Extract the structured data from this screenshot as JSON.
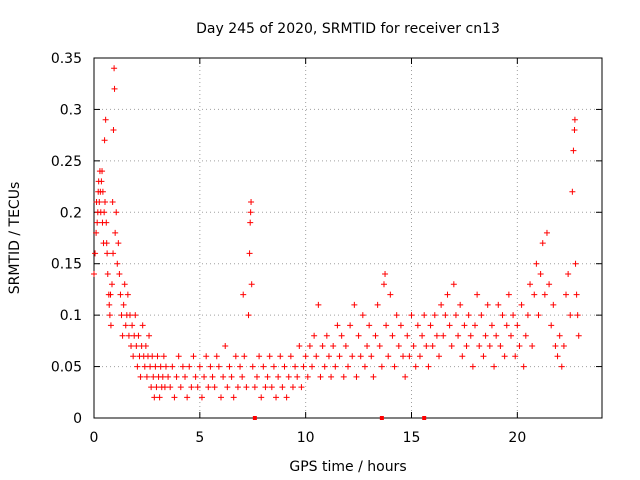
{
  "chart_data": {
    "type": "scatter",
    "title": "Day 245 of 2020, SRMTID for receiver cn13",
    "xlabel": "GPS time / hours",
    "ylabel": "SRMTID / TECUs",
    "xlim": [
      0,
      24
    ],
    "ylim": [
      0,
      0.35
    ],
    "xticks": [
      0,
      5,
      10,
      15,
      20
    ],
    "xtick_labels": [
      "0",
      "5",
      "10",
      "15",
      "20"
    ],
    "yticks": [
      0,
      0.05,
      0.1,
      0.15,
      0.2,
      0.25,
      0.3,
      0.35
    ],
    "ytick_labels": [
      "0",
      "0.05",
      "0.1",
      "0.15",
      "0.2",
      "0.25",
      "0.3",
      "0.35"
    ],
    "grid": true,
    "marker": "plus",
    "color": "#ff0000",
    "series": [
      {
        "name": "SRMTID",
        "points": [
          [
            0.0,
            0.14
          ],
          [
            0.05,
            0.16
          ],
          [
            0.1,
            0.18
          ],
          [
            0.12,
            0.21
          ],
          [
            0.15,
            0.19
          ],
          [
            0.18,
            0.2
          ],
          [
            0.2,
            0.22
          ],
          [
            0.22,
            0.23
          ],
          [
            0.25,
            0.21
          ],
          [
            0.28,
            0.24
          ],
          [
            0.3,
            0.22
          ],
          [
            0.32,
            0.2
          ],
          [
            0.35,
            0.23
          ],
          [
            0.38,
            0.24
          ],
          [
            0.4,
            0.19
          ],
          [
            0.42,
            0.22
          ],
          [
            0.45,
            0.17
          ],
          [
            0.48,
            0.2
          ],
          [
            0.5,
            0.27
          ],
          [
            0.52,
            0.21
          ],
          [
            0.55,
            0.29
          ],
          [
            0.58,
            0.19
          ],
          [
            0.6,
            0.17
          ],
          [
            0.62,
            0.16
          ],
          [
            0.65,
            0.14
          ],
          [
            0.7,
            0.12
          ],
          [
            0.72,
            0.11
          ],
          [
            0.75,
            0.1
          ],
          [
            0.78,
            0.12
          ],
          [
            0.8,
            0.09
          ],
          [
            0.85,
            0.13
          ],
          [
            0.88,
            0.21
          ],
          [
            0.9,
            0.16
          ],
          [
            0.92,
            0.28
          ],
          [
            0.95,
            0.34
          ],
          [
            0.97,
            0.32
          ],
          [
            1.0,
            0.18
          ],
          [
            1.05,
            0.2
          ],
          [
            1.1,
            0.15
          ],
          [
            1.15,
            0.17
          ],
          [
            1.2,
            0.14
          ],
          [
            1.25,
            0.12
          ],
          [
            1.3,
            0.1
          ],
          [
            1.35,
            0.08
          ],
          [
            1.4,
            0.11
          ],
          [
            1.45,
            0.13
          ],
          [
            1.5,
            0.09
          ],
          [
            1.55,
            0.1
          ],
          [
            1.6,
            0.12
          ],
          [
            1.65,
            0.08
          ],
          [
            1.7,
            0.1
          ],
          [
            1.75,
            0.07
          ],
          [
            1.8,
            0.09
          ],
          [
            1.85,
            0.06
          ],
          [
            1.9,
            0.08
          ],
          [
            1.95,
            0.1
          ],
          [
            2.0,
            0.07
          ],
          [
            2.05,
            0.05
          ],
          [
            2.1,
            0.08
          ],
          [
            2.15,
            0.06
          ],
          [
            2.2,
            0.04
          ],
          [
            2.25,
            0.07
          ],
          [
            2.3,
            0.09
          ],
          [
            2.35,
            0.06
          ],
          [
            2.4,
            0.05
          ],
          [
            2.45,
            0.07
          ],
          [
            2.5,
            0.04
          ],
          [
            2.55,
            0.06
          ],
          [
            2.6,
            0.08
          ],
          [
            2.65,
            0.05
          ],
          [
            2.7,
            0.03
          ],
          [
            2.75,
            0.06
          ],
          [
            2.8,
            0.04
          ],
          [
            2.85,
            0.02
          ],
          [
            2.9,
            0.05
          ],
          [
            2.95,
            0.03
          ],
          [
            3.0,
            0.06
          ],
          [
            3.05,
            0.04
          ],
          [
            3.1,
            0.02
          ],
          [
            3.15,
            0.05
          ],
          [
            3.2,
            0.03
          ],
          [
            3.25,
            0.04
          ],
          [
            3.3,
            0.06
          ],
          [
            3.35,
            0.03
          ],
          [
            3.4,
            0.05
          ],
          [
            3.5,
            0.04
          ],
          [
            3.6,
            0.03
          ],
          [
            3.7,
            0.05
          ],
          [
            3.8,
            0.02
          ],
          [
            3.9,
            0.04
          ],
          [
            4.0,
            0.06
          ],
          [
            4.1,
            0.03
          ],
          [
            4.2,
            0.05
          ],
          [
            4.3,
            0.04
          ],
          [
            4.4,
            0.02
          ],
          [
            4.5,
            0.05
          ],
          [
            4.6,
            0.03
          ],
          [
            4.7,
            0.06
          ],
          [
            4.8,
            0.04
          ],
          [
            4.9,
            0.03
          ],
          [
            5.0,
            0.05
          ],
          [
            5.1,
            0.02
          ],
          [
            5.2,
            0.04
          ],
          [
            5.3,
            0.06
          ],
          [
            5.4,
            0.03
          ],
          [
            5.5,
            0.05
          ],
          [
            5.6,
            0.04
          ],
          [
            5.7,
            0.03
          ],
          [
            5.8,
            0.06
          ],
          [
            5.9,
            0.05
          ],
          [
            6.0,
            0.02
          ],
          [
            6.1,
            0.04
          ],
          [
            6.2,
            0.07
          ],
          [
            6.3,
            0.03
          ],
          [
            6.4,
            0.05
          ],
          [
            6.5,
            0.04
          ],
          [
            6.6,
            0.02
          ],
          [
            6.7,
            0.06
          ],
          [
            6.8,
            0.03
          ],
          [
            6.9,
            0.05
          ],
          [
            7.0,
            0.04
          ],
          [
            7.05,
            0.12
          ],
          [
            7.1,
            0.06
          ],
          [
            7.2,
            0.03
          ],
          [
            7.3,
            0.1
          ],
          [
            7.35,
            0.16
          ],
          [
            7.38,
            0.19
          ],
          [
            7.4,
            0.2
          ],
          [
            7.42,
            0.21
          ],
          [
            7.45,
            0.13
          ],
          [
            7.5,
            0.05
          ],
          [
            7.6,
            0.03
          ],
          [
            7.7,
            0.04
          ],
          [
            7.8,
            0.06
          ],
          [
            7.9,
            0.02
          ],
          [
            8.0,
            0.05
          ],
          [
            8.1,
            0.03
          ],
          [
            8.2,
            0.04
          ],
          [
            8.3,
            0.06
          ],
          [
            8.4,
            0.03
          ],
          [
            8.5,
            0.05
          ],
          [
            8.6,
            0.02
          ],
          [
            8.7,
            0.04
          ],
          [
            8.8,
            0.06
          ],
          [
            8.9,
            0.03
          ],
          [
            9.0,
            0.05
          ],
          [
            9.1,
            0.02
          ],
          [
            9.2,
            0.04
          ],
          [
            9.3,
            0.06
          ],
          [
            9.4,
            0.03
          ],
          [
            9.5,
            0.05
          ],
          [
            9.6,
            0.04
          ],
          [
            9.7,
            0.07
          ],
          [
            9.8,
            0.03
          ],
          [
            9.9,
            0.05
          ],
          [
            10.0,
            0.06
          ],
          [
            10.1,
            0.04
          ],
          [
            10.2,
            0.07
          ],
          [
            10.3,
            0.05
          ],
          [
            10.4,
            0.08
          ],
          [
            10.5,
            0.06
          ],
          [
            10.6,
            0.11
          ],
          [
            10.7,
            0.04
          ],
          [
            10.8,
            0.07
          ],
          [
            10.9,
            0.05
          ],
          [
            11.0,
            0.08
          ],
          [
            11.1,
            0.06
          ],
          [
            11.2,
            0.04
          ],
          [
            11.3,
            0.07
          ],
          [
            11.4,
            0.05
          ],
          [
            11.5,
            0.09
          ],
          [
            11.6,
            0.06
          ],
          [
            11.7,
            0.08
          ],
          [
            11.8,
            0.04
          ],
          [
            11.9,
            0.07
          ],
          [
            12.0,
            0.05
          ],
          [
            12.1,
            0.09
          ],
          [
            12.2,
            0.06
          ],
          [
            12.3,
            0.11
          ],
          [
            12.4,
            0.04
          ],
          [
            12.5,
            0.08
          ],
          [
            12.6,
            0.06
          ],
          [
            12.7,
            0.1
          ],
          [
            12.8,
            0.05
          ],
          [
            12.9,
            0.07
          ],
          [
            13.0,
            0.09
          ],
          [
            13.1,
            0.06
          ],
          [
            13.2,
            0.04
          ],
          [
            13.3,
            0.08
          ],
          [
            13.4,
            0.11
          ],
          [
            13.5,
            0.07
          ],
          [
            13.6,
            0.05
          ],
          [
            13.7,
            0.13
          ],
          [
            13.75,
            0.14
          ],
          [
            13.8,
            0.09
          ],
          [
            13.9,
            0.06
          ],
          [
            14.0,
            0.12
          ],
          [
            14.1,
            0.08
          ],
          [
            14.2,
            0.05
          ],
          [
            14.3,
            0.1
          ],
          [
            14.4,
            0.07
          ],
          [
            14.5,
            0.09
          ],
          [
            14.6,
            0.06
          ],
          [
            14.7,
            0.04
          ],
          [
            14.8,
            0.08
          ],
          [
            14.9,
            0.06
          ],
          [
            15.0,
            0.1
          ],
          [
            15.1,
            0.07
          ],
          [
            15.2,
            0.05
          ],
          [
            15.3,
            0.09
          ],
          [
            15.4,
            0.06
          ],
          [
            15.5,
            0.08
          ],
          [
            15.6,
            0.1
          ],
          [
            15.7,
            0.07
          ],
          [
            15.8,
            0.05
          ],
          [
            15.9,
            0.09
          ],
          [
            16.0,
            0.07
          ],
          [
            16.1,
            0.1
          ],
          [
            16.2,
            0.08
          ],
          [
            16.3,
            0.06
          ],
          [
            16.4,
            0.11
          ],
          [
            16.5,
            0.08
          ],
          [
            16.6,
            0.1
          ],
          [
            16.7,
            0.12
          ],
          [
            16.8,
            0.09
          ],
          [
            16.9,
            0.07
          ],
          [
            17.0,
            0.13
          ],
          [
            17.1,
            0.1
          ],
          [
            17.2,
            0.08
          ],
          [
            17.3,
            0.11
          ],
          [
            17.4,
            0.06
          ],
          [
            17.5,
            0.09
          ],
          [
            17.6,
            0.07
          ],
          [
            17.7,
            0.1
          ],
          [
            17.8,
            0.08
          ],
          [
            17.9,
            0.05
          ],
          [
            18.0,
            0.09
          ],
          [
            18.1,
            0.12
          ],
          [
            18.2,
            0.07
          ],
          [
            18.3,
            0.1
          ],
          [
            18.4,
            0.06
          ],
          [
            18.5,
            0.08
          ],
          [
            18.6,
            0.11
          ],
          [
            18.7,
            0.07
          ],
          [
            18.8,
            0.09
          ],
          [
            18.9,
            0.05
          ],
          [
            19.0,
            0.08
          ],
          [
            19.1,
            0.11
          ],
          [
            19.2,
            0.07
          ],
          [
            19.3,
            0.1
          ],
          [
            19.4,
            0.06
          ],
          [
            19.5,
            0.09
          ],
          [
            19.6,
            0.12
          ],
          [
            19.7,
            0.08
          ],
          [
            19.8,
            0.1
          ],
          [
            19.9,
            0.06
          ],
          [
            20.0,
            0.09
          ],
          [
            20.1,
            0.07
          ],
          [
            20.2,
            0.11
          ],
          [
            20.3,
            0.05
          ],
          [
            20.4,
            0.08
          ],
          [
            20.5,
            0.1
          ],
          [
            20.6,
            0.13
          ],
          [
            20.7,
            0.07
          ],
          [
            20.8,
            0.12
          ],
          [
            20.9,
            0.15
          ],
          [
            21.0,
            0.1
          ],
          [
            21.1,
            0.14
          ],
          [
            21.2,
            0.17
          ],
          [
            21.3,
            0.12
          ],
          [
            21.4,
            0.18
          ],
          [
            21.5,
            0.13
          ],
          [
            21.6,
            0.09
          ],
          [
            21.7,
            0.11
          ],
          [
            21.8,
            0.07
          ],
          [
            21.9,
            0.06
          ],
          [
            22.0,
            0.08
          ],
          [
            22.1,
            0.05
          ],
          [
            22.2,
            0.07
          ],
          [
            22.3,
            0.12
          ],
          [
            22.4,
            0.14
          ],
          [
            22.5,
            0.1
          ],
          [
            22.6,
            0.22
          ],
          [
            22.65,
            0.26
          ],
          [
            22.7,
            0.28
          ],
          [
            22.72,
            0.29
          ],
          [
            22.75,
            0.15
          ],
          [
            22.8,
            0.12
          ],
          [
            22.85,
            0.1
          ],
          [
            22.9,
            0.08
          ]
        ]
      }
    ],
    "axis_ticks_on_x_at_zero": [
      7.6,
      13.6,
      15.6
    ]
  }
}
